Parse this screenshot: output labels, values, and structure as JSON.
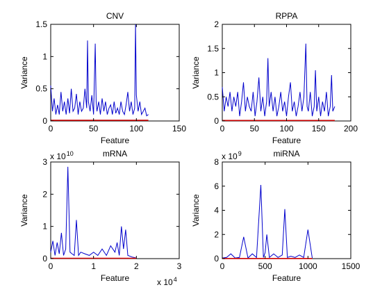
{
  "chart_data": [
    {
      "type": "line",
      "title": "CNV",
      "xlabel": "Feature",
      "ylabel": "Variance",
      "xlim": [
        0,
        150
      ],
      "ylim": [
        0,
        1.5
      ],
      "xticks": [
        "0",
        "50",
        "100",
        "150"
      ],
      "yticks": [
        "0",
        "0.5",
        "1",
        "1.5"
      ],
      "x_exponent_base": "",
      "x_exponent_power": "",
      "y_exponent_base": "",
      "y_exponent_power": "",
      "series": [
        {
          "color": "#0000cc",
          "x": [
            0,
            2,
            4,
            6,
            8,
            10,
            12,
            14,
            16,
            18,
            20,
            22,
            24,
            26,
            28,
            30,
            32,
            34,
            36,
            38,
            40,
            42,
            43,
            44,
            46,
            48,
            50,
            52,
            53,
            54,
            56,
            58,
            60,
            62,
            64,
            66,
            68,
            70,
            72,
            74,
            76,
            78,
            80,
            82,
            84,
            86,
            88,
            90,
            92,
            94,
            96,
            98,
            99,
            100,
            102,
            104,
            106,
            108,
            110,
            112,
            114
          ],
          "y": [
            0.55,
            0.15,
            0.35,
            0.1,
            0.25,
            0.1,
            0.45,
            0.15,
            0.3,
            0.1,
            0.35,
            0.12,
            0.5,
            0.15,
            0.2,
            0.42,
            0.1,
            0.3,
            0.15,
            0.2,
            0.5,
            0.2,
            1.25,
            0.3,
            0.15,
            0.4,
            0.1,
            1.2,
            0.3,
            0.15,
            0.3,
            0.1,
            0.35,
            0.15,
            0.3,
            0.1,
            0.2,
            0.25,
            0.1,
            0.3,
            0.12,
            0.2,
            0.1,
            0.3,
            0.15,
            0.1,
            0.25,
            0.45,
            0.15,
            0.3,
            0.1,
            0.2,
            1.5,
            0.4,
            0.15,
            0.3,
            0.1,
            0.15,
            0.2,
            0.08,
            0.1
          ]
        },
        {
          "color": "#cc0000",
          "x": [
            0,
            114
          ],
          "y": [
            0.01,
            0.01
          ]
        }
      ]
    },
    {
      "type": "line",
      "title": "RPPA",
      "xlabel": "Feature",
      "ylabel": "Variance",
      "xlim": [
        0,
        200
      ],
      "ylim": [
        0,
        2
      ],
      "xticks": [
        "0",
        "50",
        "100",
        "150",
        "200"
      ],
      "yticks": [
        "0",
        "0.5",
        "1",
        "1.5",
        "2"
      ],
      "x_exponent_base": "",
      "x_exponent_power": "",
      "y_exponent_base": "",
      "y_exponent_power": "",
      "series": [
        {
          "color": "#0000cc",
          "x": [
            0,
            3,
            6,
            9,
            12,
            15,
            18,
            21,
            24,
            27,
            30,
            33,
            36,
            39,
            42,
            45,
            48,
            51,
            54,
            57,
            60,
            63,
            66,
            69,
            71,
            73,
            76,
            79,
            82,
            85,
            88,
            91,
            94,
            97,
            100,
            103,
            106,
            109,
            112,
            115,
            118,
            121,
            124,
            127,
            130,
            132,
            134,
            137,
            140,
            143,
            145,
            147,
            150,
            153,
            156,
            159,
            162,
            165,
            168,
            170,
            172,
            175
          ],
          "y": [
            0.7,
            0.2,
            0.5,
            0.3,
            0.6,
            0.2,
            0.5,
            0.3,
            0.6,
            0.1,
            0.4,
            0.8,
            0.2,
            0.5,
            0.3,
            0.2,
            0.6,
            0.1,
            0.4,
            0.9,
            0.2,
            0.5,
            0.1,
            0.4,
            1.3,
            0.3,
            0.6,
            0.2,
            0.5,
            0.1,
            0.3,
            0.6,
            0.2,
            0.4,
            0.1,
            0.5,
            0.8,
            0.2,
            0.4,
            0.1,
            0.3,
            0.6,
            0.2,
            0.5,
            1.6,
            0.3,
            0.2,
            0.6,
            0.1,
            0.3,
            1.05,
            0.2,
            0.5,
            0.1,
            0.4,
            0.2,
            0.6,
            0.1,
            0.3,
            0.95,
            0.2,
            0.3
          ]
        },
        {
          "color": "#cc0000",
          "x": [
            0,
            175
          ],
          "y": [
            0.01,
            0.01
          ]
        }
      ]
    },
    {
      "type": "line",
      "title": "mRNA",
      "xlabel": "Feature",
      "ylabel": "Variance",
      "xlim": [
        0,
        3
      ],
      "ylim": [
        0,
        3
      ],
      "xticks": [
        "0",
        "1",
        "2",
        "3"
      ],
      "yticks": [
        "0",
        "1",
        "2",
        "3"
      ],
      "x_exponent_base": "x 10",
      "x_exponent_power": "4",
      "y_exponent_base": "x 10",
      "y_exponent_power": "10",
      "series": [
        {
          "color": "#0000cc",
          "x": [
            0,
            0.05,
            0.1,
            0.15,
            0.2,
            0.25,
            0.3,
            0.35,
            0.4,
            0.45,
            0.5,
            0.55,
            0.6,
            0.65,
            0.7,
            0.8,
            0.9,
            1.0,
            1.1,
            1.2,
            1.3,
            1.4,
            1.5,
            1.55,
            1.6,
            1.65,
            1.7,
            1.75,
            1.8,
            1.9,
            2.0
          ],
          "y": [
            0.2,
            0.55,
            0.1,
            0.5,
            0.15,
            0.8,
            0.1,
            0.3,
            2.85,
            0.2,
            0.15,
            0.1,
            1.2,
            0.1,
            0.2,
            0.15,
            0.1,
            0.2,
            0.1,
            0.3,
            0.1,
            0.4,
            0.2,
            0.5,
            0.1,
            1.0,
            0.3,
            0.9,
            0.1,
            0.05,
            0.02
          ]
        },
        {
          "color": "#cc0000",
          "x": [
            0,
            2.0
          ],
          "y": [
            0.01,
            0.01
          ]
        }
      ]
    },
    {
      "type": "line",
      "title": "miRNA",
      "xlabel": "Feature",
      "ylabel": "Variance",
      "xlim": [
        0,
        1500
      ],
      "ylim": [
        0,
        8
      ],
      "xticks": [
        "0",
        "500",
        "1000",
        "1500"
      ],
      "yticks": [
        "0",
        "2",
        "4",
        "6",
        "8"
      ],
      "x_exponent_base": "",
      "x_exponent_power": "",
      "y_exponent_base": "x 10",
      "y_exponent_power": "9",
      "series": [
        {
          "color": "#0000cc",
          "x": [
            0,
            50,
            100,
            150,
            200,
            250,
            300,
            350,
            400,
            450,
            480,
            500,
            520,
            550,
            600,
            650,
            700,
            730,
            760,
            800,
            850,
            900,
            950,
            1000,
            1050
          ],
          "y": [
            0.05,
            0.1,
            0.4,
            0.05,
            0.1,
            1.8,
            0.05,
            0.4,
            0.1,
            6.1,
            0.1,
            0.5,
            2.0,
            0.1,
            0.4,
            0.1,
            0.3,
            4.1,
            0.1,
            0.2,
            0.1,
            0.3,
            0.1,
            2.4,
            0.05
          ]
        },
        {
          "color": "#cc0000",
          "x": [
            0,
            1050
          ],
          "y": [
            0.01,
            0.01
          ]
        }
      ]
    }
  ]
}
